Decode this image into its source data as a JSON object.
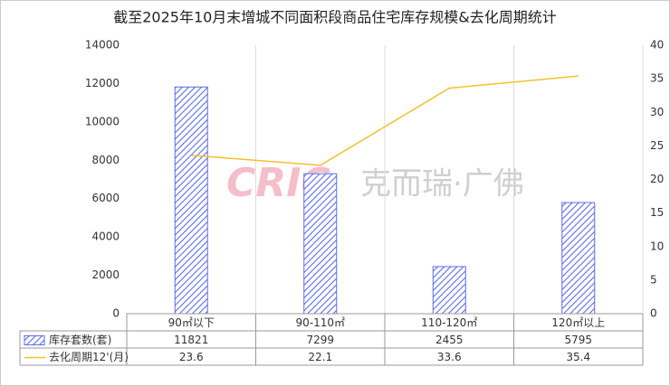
{
  "chart_data": {
    "type": "bar",
    "title": "截至2025年10月末增城不同面积段商品住宅库存规模&去化周期统计",
    "categories": [
      "90㎡以下",
      "90-110㎡",
      "110-120㎡",
      "120㎡以上"
    ],
    "series": [
      {
        "name": "库存套数(套)",
        "type": "bar",
        "color": "#5b6cf0",
        "values": [
          11821,
          7299,
          2455,
          5795
        ]
      },
      {
        "name": "去化周期12'(月)",
        "type": "line",
        "color": "#f2c12e",
        "axis": "y2",
        "values": [
          23.6,
          22.1,
          33.6,
          35.4
        ]
      }
    ],
    "ylim": [
      0,
      14000
    ],
    "yticks": [
      0,
      2000,
      4000,
      6000,
      8000,
      10000,
      12000,
      14000
    ],
    "y2lim": [
      0,
      40
    ],
    "y2ticks": [
      0,
      5,
      10,
      15,
      20,
      25,
      30,
      35,
      40
    ],
    "watermark": {
      "logo": "CRIC",
      "text": "克而瑞·广佛"
    }
  }
}
